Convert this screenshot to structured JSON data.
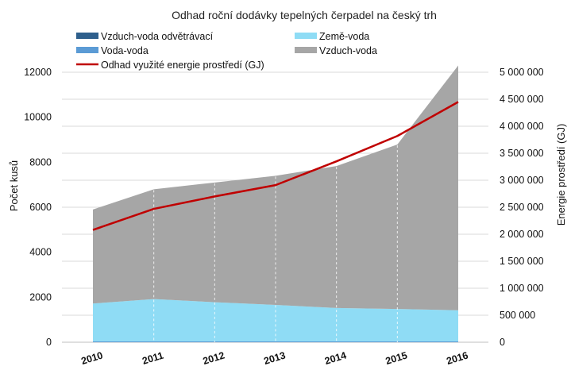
{
  "chart_data": {
    "type": "area",
    "title": "Odhad roční dodávky tepelných čerpadel na český trh",
    "categories": [
      "2010",
      "2011",
      "2012",
      "2013",
      "2014",
      "2015",
      "2016"
    ],
    "ylabel": "Počet kusů",
    "y2label": "Energie prostředí (GJ)",
    "ylim": [
      0,
      12000
    ],
    "y2lim": [
      0,
      5000000
    ],
    "yticks": [
      "0",
      "2000",
      "4000",
      "6000",
      "8000",
      "10000",
      "12000"
    ],
    "y2ticks": [
      "0",
      "500 000",
      "1 000 000",
      "1 500 000",
      "2 000 000",
      "2 500 000",
      "3 000 000",
      "3 500 000",
      "4 000 000",
      "4 500 000",
      "5 000 000"
    ],
    "grid": true,
    "series": [
      {
        "name": "Vzduch-voda odvětrávací",
        "type": "area",
        "color": "#2e5f8c",
        "values": [
          0,
          0,
          0,
          0,
          0,
          0,
          0
        ]
      },
      {
        "name": "Voda-voda",
        "type": "area",
        "color": "#5b9bd5",
        "values": [
          40,
          40,
          40,
          40,
          40,
          40,
          40
        ]
      },
      {
        "name": "Země-voda",
        "type": "area",
        "color": "#8fdcf5",
        "values": [
          1680,
          1880,
          1740,
          1620,
          1480,
          1440,
          1380
        ]
      },
      {
        "name": "Vzduch-voda",
        "type": "area",
        "color": "#a6a6a6",
        "values": [
          4180,
          4880,
          5320,
          5740,
          6310,
          7310,
          10880
        ]
      },
      {
        "name": "Odhad využité energie prostředí (GJ)",
        "type": "line",
        "axis": "right",
        "color": "#c00000",
        "values": [
          2080000,
          2470000,
          2700000,
          2910000,
          3350000,
          3820000,
          4450000
        ]
      }
    ],
    "legend": {
      "left": [
        "Vzduch-voda odvětrávací",
        "Voda-voda",
        "Odhad využité energie prostředí (GJ)"
      ],
      "right": [
        "Země-voda",
        "Vzduch-voda"
      ]
    }
  }
}
